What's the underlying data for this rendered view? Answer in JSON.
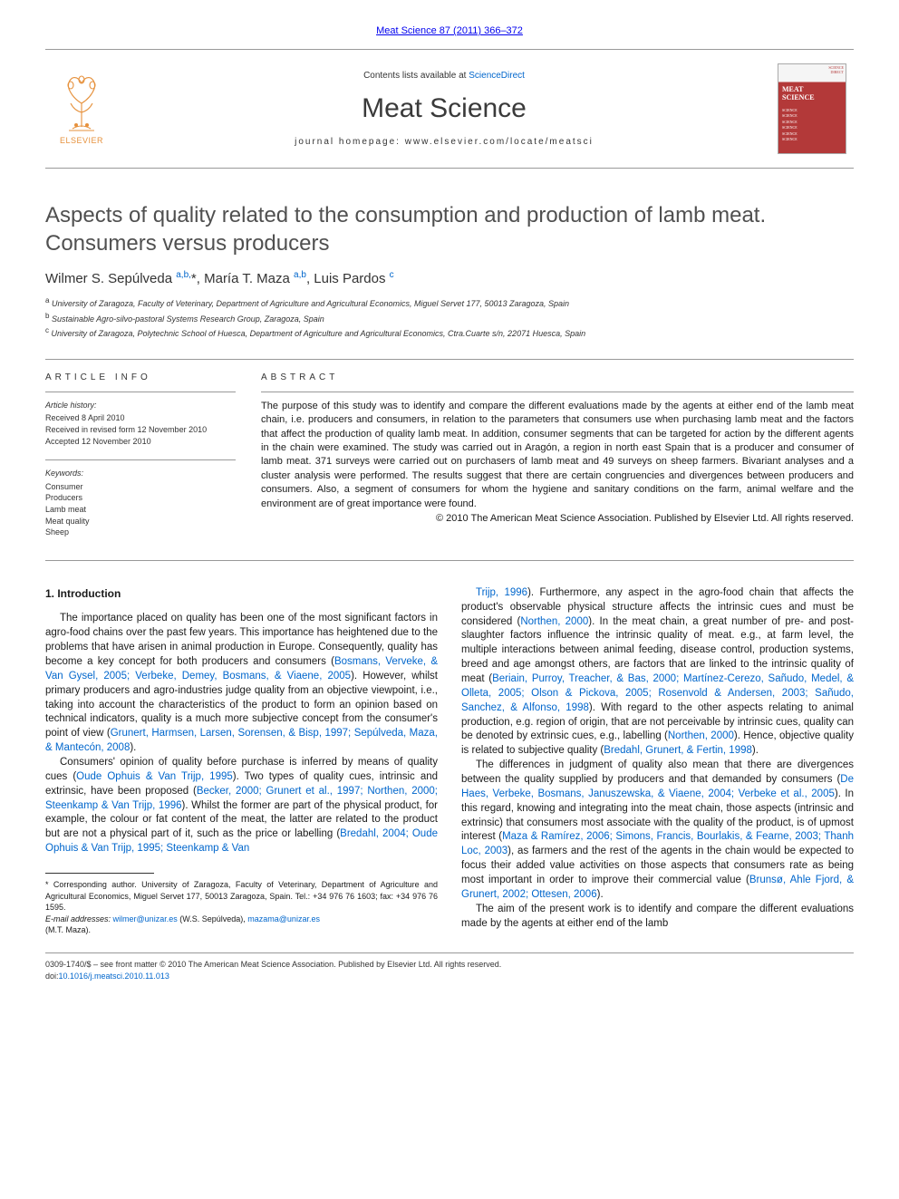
{
  "header": {
    "citation": "Meat Science 87 (2011) 366–372",
    "contents_prefix": "Contents lists available at ",
    "contents_link": "ScienceDirect",
    "journal": "Meat Science",
    "homepage_prefix": "journal homepage: ",
    "homepage_url": "www.elsevier.com/locate/meatsci",
    "publisher": "ELSEVIER",
    "cover_title_1": "MEAT",
    "cover_title_2": "SCIENCE"
  },
  "article": {
    "title": "Aspects of quality related to the consumption and production of lamb meat. Consumers versus producers",
    "authors_html": "Wilmer S. Sepúlveda <sup>a,b,</sup><span class='ast'>*</span>, María T. Maza <sup>a,b</sup>, Luis Pardos <sup>c</sup>",
    "affiliations": [
      {
        "sup": "a",
        "text": "University of Zaragoza, Faculty of Veterinary, Department of Agriculture and Agricultural Economics, Miguel Servet 177, 50013 Zaragoza, Spain"
      },
      {
        "sup": "b",
        "text": "Sustainable Agro-silvo-pastoral Systems Research Group, Zaragoza, Spain"
      },
      {
        "sup": "c",
        "text": "University of Zaragoza, Polytechnic School of Huesca, Department of Agriculture and Agricultural Economics, Ctra.Cuarte s/n, 22071 Huesca, Spain"
      }
    ]
  },
  "meta": {
    "info_head": "ARTICLE INFO",
    "abstract_head": "ABSTRACT",
    "history_label": "Article history:",
    "history": [
      "Received 8 April 2010",
      "Received in revised form 12 November 2010",
      "Accepted 12 November 2010"
    ],
    "keywords_label": "Keywords:",
    "keywords": [
      "Consumer",
      "Producers",
      "Lamb meat",
      "Meat quality",
      "Sheep"
    ],
    "abstract": "The purpose of this study was to identify and compare the different evaluations made by the agents at either end of the lamb meat chain, i.e. producers and consumers, in relation to the parameters that consumers use when purchasing lamb meat and the factors that affect the production of quality lamb meat. In addition, consumer segments that can be targeted for action by the different agents in the chain were examined. The study was carried out in Aragón, a region in north east Spain that is a producer and consumer of lamb meat. 371 surveys were carried out on purchasers of lamb meat and 49 surveys on sheep farmers. Bivariant analyses and a cluster analysis were performed. The results suggest that there are certain congruencies and divergences between producers and consumers. Also, a segment of consumers for whom the hygiene and sanitary conditions on the farm, animal welfare and the environment are of great importance were found.",
    "copyright": "© 2010 The American Meat Science Association. Published by Elsevier Ltd. All rights reserved."
  },
  "body": {
    "section_heading": "1. Introduction",
    "left_paragraphs": [
      "The importance placed on quality has been one of the most significant factors in agro-food chains over the past few years. This importance has heightened due to the problems that have arisen in animal production in Europe. Consequently, quality has become a key concept for both producers and consumers (<a href='#'>Bosmans, Verveke, & Van Gysel, 2005; Verbeke, Demey, Bosmans, & Viaene, 2005</a>). However, whilst primary producers and agro-industries judge quality from an objective viewpoint, i.e., taking into account the characteristics of the product to form an opinion based on technical indicators, quality is a much more subjective concept from the consumer's point of view (<a href='#'>Grunert, Harmsen, Larsen, Sorensen, & Bisp, 1997; Sepúlveda, Maza, & Mantecón, 2008</a>).",
      "Consumers' opinion of quality before purchase is inferred by means of quality cues (<a href='#'>Oude Ophuis & Van Trijp, 1995</a>). Two types of quality cues, intrinsic and extrinsic, have been proposed (<a href='#'>Becker, 2000; Grunert et al., 1997; Northen, 2000; Steenkamp & Van Trijp, 1996</a>). Whilst the former are part of the physical product, for example, the colour or fat content of the meat, the latter are related to the product but are not a physical part of it, such as the price or labelling (<a href='#'>Bredahl, 2004; Oude Ophuis & Van Trijp, 1995; Steenkamp & Van</a>"
    ],
    "right_paragraphs": [
      "<a href='#'>Trijp, 1996</a>). Furthermore, any aspect in the agro-food chain that affects the product's observable physical structure affects the intrinsic cues and must be considered (<a href='#'>Northen, 2000</a>). In the meat chain, a great number of pre- and post-slaughter factors influence the intrinsic quality of meat. e.g., at farm level, the multiple interactions between animal feeding, disease control, production systems, breed and age amongst others, are factors that are linked to the intrinsic quality of meat (<a href='#'>Beriain, Purroy, Treacher, & Bas, 2000; Martínez-Cerezo, Sañudo, Medel, & Olleta, 2005; Olson & Pickova, 2005; Rosenvold & Andersen, 2003; Sañudo, Sanchez, & Alfonso, 1998</a>). With regard to the other aspects relating to animal production, e.g. region of origin, that are not perceivable by intrinsic cues, quality can be denoted by extrinsic cues, e.g., labelling (<a href='#'>Northen, 2000</a>). Hence, objective quality is related to subjective quality (<a href='#'>Bredahl, Grunert, & Fertin, 1998</a>).",
      "The differences in judgment of quality also mean that there are divergences between the quality supplied by producers and that demanded by consumers (<a href='#'>De Haes, Verbeke, Bosmans, Januszewska, & Viaene, 2004; Verbeke et al., 2005</a>). In this regard, knowing and integrating into the meat chain, those aspects (intrinsic and extrinsic) that consumers most associate with the quality of the product, is of upmost interest (<a href='#'>Maza & Ramírez, 2006; Simons, Francis, Bourlakis, & Fearne, 2003; Thanh Loc, 2003</a>), as farmers and the rest of the agents in the chain would be expected to focus their added value activities on those aspects that consumers rate as being most important in order to improve their commercial value (<a href='#'>Brunsø, Ahle Fjord, & Grunert, 2002; Ottesen, 2006</a>).",
      "The aim of the present work is to identify and compare the different evaluations made by the agents at either end of the lamb"
    ]
  },
  "footnotes": {
    "corr": "* Corresponding author. University of Zaragoza, Faculty of Veterinary, Department of Agriculture and Agricultural Economics, Miguel Servet 177, 50013 Zaragoza, Spain. Tel.: +34 976 76 1603; fax: +34 976 76 1595.",
    "email_label": "E-mail addresses:",
    "email1": "wilmer@unizar.es",
    "email1_who": "(W.S. Sepúlveda),",
    "email2": "mazama@unizar.es",
    "email2_who": "(M.T. Maza)."
  },
  "footer": {
    "issn_line": "0309-1740/$ – see front matter © 2010 The American Meat Science Association. Published by Elsevier Ltd. All rights reserved.",
    "doi_label": "doi:",
    "doi": "10.1016/j.meatsci.2010.11.013"
  },
  "colors": {
    "link": "#0066cc",
    "rule": "#999999",
    "text": "#1a1a1a",
    "elsevier_orange": "#e6913c",
    "cover_red": "#b33939"
  }
}
